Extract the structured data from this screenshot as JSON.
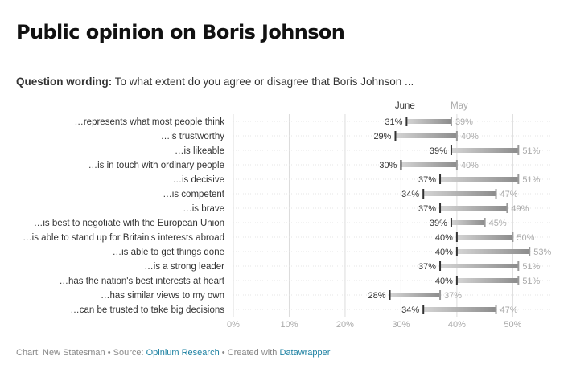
{
  "title": "Public opinion on Boris Johnson",
  "question": {
    "label": "Question wording:",
    "text": "To what extent do you agree or disagree that Boris Johnson ..."
  },
  "footer": {
    "chart_prefix": "Chart: New Statesman • Source: ",
    "source": "Opinium Research",
    "created_prefix": " • Created with ",
    "tool": "Datawrapper"
  },
  "colors": {
    "june": "#333333",
    "may": "#aaaaaa",
    "bar_light": "#d4d4d4",
    "bar_dark": "#8c8c8c",
    "grid": "#dcdcdc",
    "link": "#1d81a2"
  },
  "chart_data": {
    "type": "range-plot",
    "series": [
      {
        "name": "June"
      },
      {
        "name": "May"
      }
    ],
    "categories": [
      "...represents what most people think",
      "...is trustworthy",
      "...is likeable",
      "...is in touch with ordinary people",
      "...is decisive",
      "...is competent",
      "...is brave",
      "...is best to negotiate with the European Union",
      "...is able to stand up for Britain's interests abroad",
      "...is able to get things done",
      "...is a strong leader",
      "...has the nation's best interests at heart",
      "...has similar views to my own",
      "...can be trusted to take big decisions"
    ],
    "june": [
      31,
      29,
      39,
      30,
      37,
      34,
      37,
      39,
      40,
      40,
      37,
      40,
      28,
      34
    ],
    "may": [
      39,
      40,
      51,
      40,
      51,
      47,
      49,
      45,
      50,
      53,
      51,
      51,
      37,
      47
    ],
    "xlim": [
      0,
      57
    ],
    "xticks": [
      0,
      10,
      20,
      30,
      40,
      50
    ],
    "tick_suffix": "%"
  }
}
